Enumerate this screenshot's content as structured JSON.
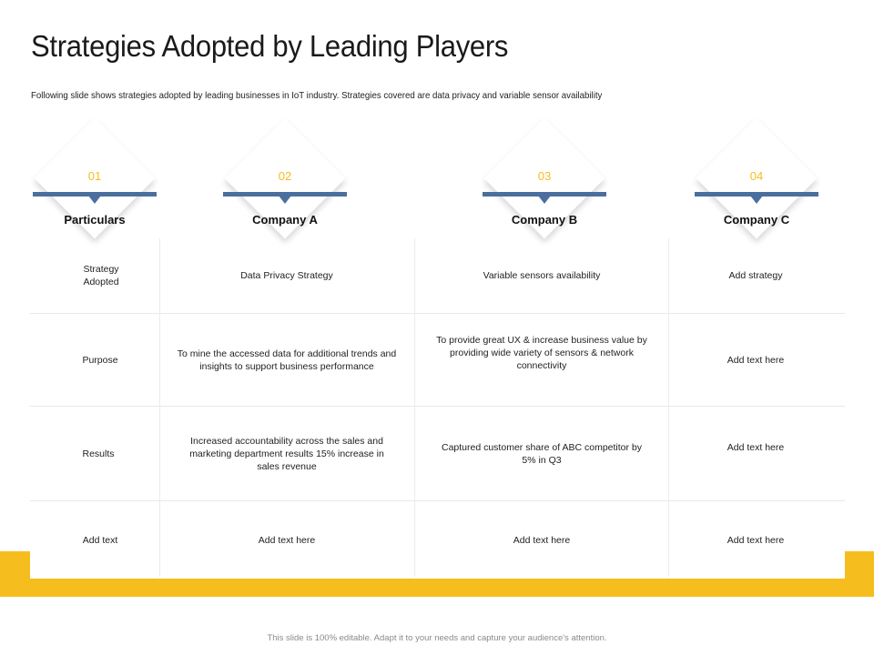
{
  "page": {
    "title": "Strategies Adopted by Leading Players",
    "subtitle": "Following slide shows strategies adopted by leading businesses in IoT industry. Strategies covered are data privacy and variable sensor availability",
    "footer": "This slide is 100% editable. Adapt it to your needs and capture your audience's attention."
  },
  "colors": {
    "accent_yellow": "#f6bd1e",
    "header_bar_blue": "#4a6f9e"
  },
  "columns": [
    {
      "number": "01",
      "label": "Particulars"
    },
    {
      "number": "02",
      "label": "Company A"
    },
    {
      "number": "03",
      "label": "Company B"
    },
    {
      "number": "04",
      "label": "Company C"
    }
  ],
  "rows": [
    {
      "particular": "Strategy Adopted",
      "company_a": "Data Privacy Strategy",
      "company_b": "Variable sensors availability",
      "company_c": "Add strategy"
    },
    {
      "particular": "Purpose",
      "company_a": "To mine the accessed data for additional trends and insights to support business performance",
      "company_b": "To provide great UX & increase business value by providing wide variety of sensors & network connectivity",
      "company_c": "Add text here"
    },
    {
      "particular": "Results",
      "company_a": "Increased accountability across the sales and marketing department results 15% increase in sales revenue",
      "company_b": "Captured customer share of ABC competitor by 5% in Q3",
      "company_c": "Add text here"
    },
    {
      "particular": "Add text",
      "company_a": "Add text here",
      "company_b": "Add text here",
      "company_c": "Add text here"
    }
  ]
}
